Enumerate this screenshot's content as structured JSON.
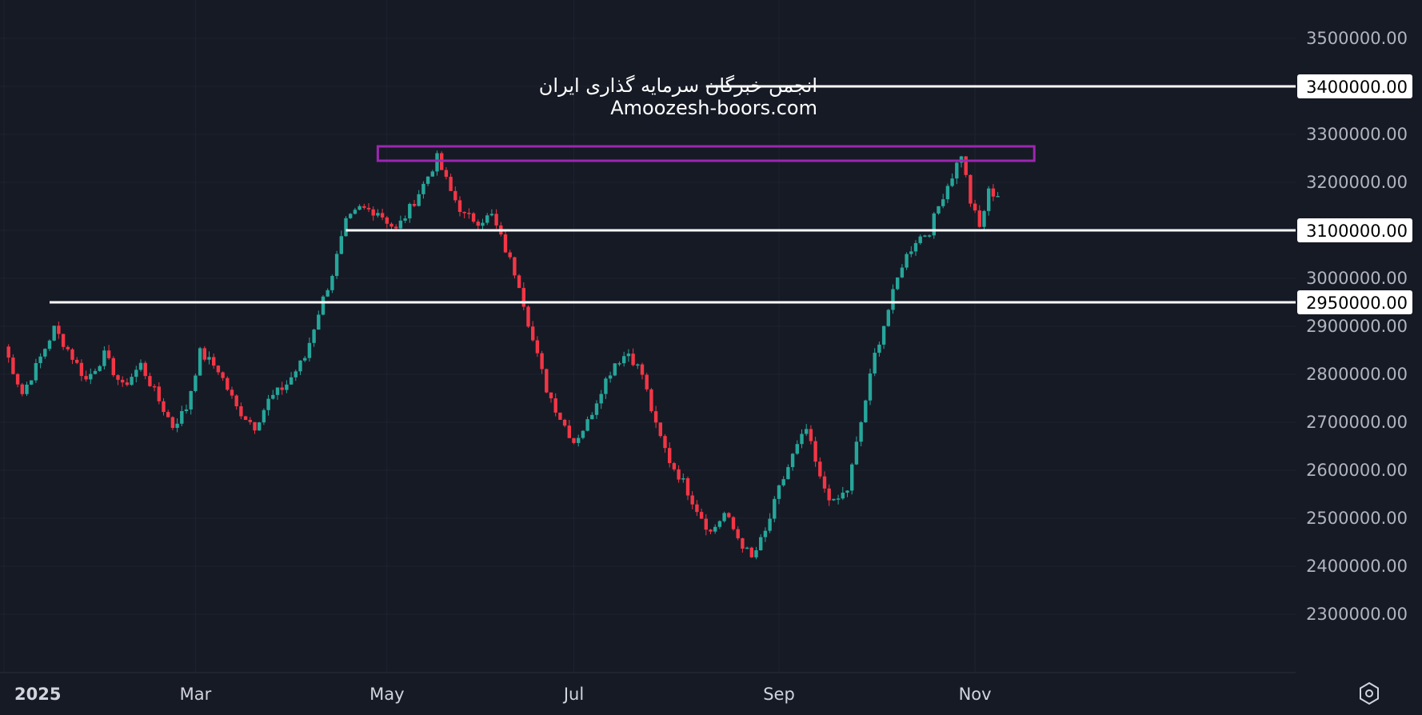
{
  "chart_data": {
    "type": "candlestick",
    "title": "",
    "y_axis": {
      "position": "right",
      "range": [
        2180000,
        3580000
      ],
      "ticks": [
        "3500000.00",
        "3400000.00",
        "3300000.00",
        "3200000.00",
        "3100000.00",
        "3000000.00",
        "2900000.00",
        "2800000.00",
        "2700000.00",
        "2600000.00",
        "2500000.00",
        "2400000.00",
        "2300000.00"
      ],
      "tick_values": [
        3500000,
        3400000,
        3300000,
        3200000,
        3100000,
        3000000,
        2900000,
        2800000,
        2700000,
        2600000,
        2500000,
        2400000,
        2300000
      ]
    },
    "x_axis": {
      "labels": [
        {
          "text": "2025",
          "bold": true,
          "at": 0
        },
        {
          "text": "Mar",
          "bold": false,
          "at": 42
        },
        {
          "text": "May",
          "bold": false,
          "at": 84
        },
        {
          "text": "Jul",
          "bold": false,
          "at": 125
        },
        {
          "text": "Sep",
          "bold": false,
          "at": 170
        },
        {
          "text": "Nov",
          "bold": false,
          "at": 213
        }
      ],
      "total_bars": 240
    },
    "colors": {
      "up": "#26a69a",
      "down": "#f23645",
      "background": "#161a25",
      "grid": "#1f2330",
      "level_line": "#ffffff",
      "zone": "#9c27b0"
    },
    "close_path": [
      [
        0,
        2858000
      ],
      [
        4,
        2760000
      ],
      [
        7,
        2815000
      ],
      [
        11,
        2895000
      ],
      [
        14,
        2852000
      ],
      [
        18,
        2788000
      ],
      [
        22,
        2840000
      ],
      [
        26,
        2773000
      ],
      [
        30,
        2820000
      ],
      [
        34,
        2745000
      ],
      [
        37,
        2692000
      ],
      [
        40,
        2730000
      ],
      [
        43,
        2845000
      ],
      [
        47,
        2810000
      ],
      [
        51,
        2730000
      ],
      [
        55,
        2692000
      ],
      [
        58,
        2745000
      ],
      [
        62,
        2780000
      ],
      [
        66,
        2835000
      ],
      [
        69,
        2930000
      ],
      [
        72,
        3010000
      ],
      [
        75,
        3115000
      ],
      [
        78,
        3145000
      ],
      [
        82,
        3140000
      ],
      [
        86,
        3100000
      ],
      [
        89,
        3145000
      ],
      [
        92,
        3195000
      ],
      [
        95,
        3250000
      ],
      [
        98,
        3180000
      ],
      [
        101,
        3130000
      ],
      [
        104,
        3120000
      ],
      [
        107,
        3130000
      ],
      [
        110,
        3060000
      ],
      [
        113,
        2990000
      ],
      [
        116,
        2870000
      ],
      [
        119,
        2770000
      ],
      [
        122,
        2710000
      ],
      [
        125,
        2660000
      ],
      [
        128,
        2700000
      ],
      [
        131,
        2770000
      ],
      [
        134,
        2825000
      ],
      [
        137,
        2845000
      ],
      [
        140,
        2800000
      ],
      [
        143,
        2690000
      ],
      [
        146,
        2620000
      ],
      [
        149,
        2575000
      ],
      [
        152,
        2520000
      ],
      [
        155,
        2470000
      ],
      [
        158,
        2510000
      ],
      [
        161,
        2460000
      ],
      [
        164,
        2415000
      ],
      [
        167,
        2470000
      ],
      [
        170,
        2560000
      ],
      [
        173,
        2630000
      ],
      [
        176,
        2685000
      ],
      [
        179,
        2580000
      ],
      [
        182,
        2530000
      ],
      [
        185,
        2560000
      ],
      [
        188,
        2700000
      ],
      [
        191,
        2840000
      ],
      [
        194,
        2935000
      ],
      [
        197,
        3030000
      ],
      [
        200,
        3080000
      ],
      [
        203,
        3100000
      ],
      [
        206,
        3175000
      ],
      [
        208,
        3215000
      ],
      [
        210,
        3260000
      ],
      [
        212,
        3160000
      ],
      [
        214,
        3105000
      ],
      [
        216,
        3180000
      ],
      [
        218,
        3175000
      ]
    ],
    "hlines": [
      {
        "name": "level-3400000",
        "value": 3400000,
        "label": "3400000.00",
        "x_start_bar": 154
      },
      {
        "name": "level-3100000",
        "value": 3100000,
        "label": "3100000.00",
        "x_start_bar": 75
      },
      {
        "name": "level-2950000",
        "value": 2950000,
        "label": "2950000.00",
        "x_start_bar": 10
      }
    ],
    "zone": {
      "y_low": 3245000,
      "y_high": 3275000,
      "x_start_bar": 82,
      "x_end_bar": 226
    }
  },
  "watermark": {
    "line1": "انجمن خبرگان سرمایه گذاری ایران",
    "line2": "Amoozesh-boors.com"
  },
  "settings_icon": "settings-hexagon-icon"
}
